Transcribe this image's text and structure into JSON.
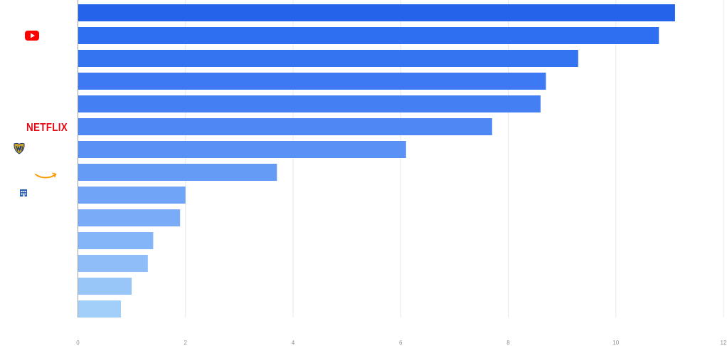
{
  "chart_data": {
    "type": "bar",
    "orientation": "horizontal",
    "title": "",
    "xlabel": "",
    "ylabel": "",
    "xlim": [
      0,
      12
    ],
    "x_ticks": [
      0,
      2,
      4,
      6,
      8,
      10,
      12
    ],
    "x_tick_labels": [
      "0",
      "2",
      "4",
      "6",
      "8",
      "10",
      "12"
    ],
    "grid": "vertical",
    "values": [
      11.1,
      10.8,
      9.3,
      8.7,
      8.6,
      7.7,
      6.1,
      3.7,
      2.0,
      1.9,
      1.4,
      1.3,
      1.0,
      0.8
    ],
    "bar_colors": [
      "#2563eb",
      "#2e6ef1",
      "#3574f1",
      "#3c79f2",
      "#447ff3",
      "#4f88f4",
      "#5a91f5",
      "#669bf5",
      "#70a4f6",
      "#7aabf6",
      "#84b5f8",
      "#8ebdf8",
      "#98c6f9",
      "#a2cffa"
    ],
    "category_logos": [
      "youtube-icon",
      "",
      "",
      "",
      "",
      "netflix-logo",
      "warner-bros-shield-icon",
      "amazon-smile-icon",
      "building-icon",
      "",
      "",
      "",
      "",
      ""
    ],
    "logo_texts": {
      "netflix": "NETFLIX"
    }
  },
  "colors": {
    "youtube_red": "#ff0000",
    "netflix_red": "#e50914",
    "amazon_orange": "#ff9900",
    "wb_gold": "#c9a227",
    "wb_navy": "#1d3a72",
    "building_blue": "#2a5fb0",
    "grid": "#e6e8ec",
    "axis": "#9aa0a8"
  }
}
